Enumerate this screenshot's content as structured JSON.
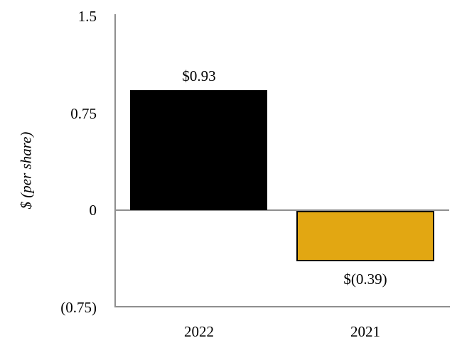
{
  "chart_data": {
    "type": "bar",
    "categories": [
      "2022",
      "2021"
    ],
    "values": [
      0.93,
      -0.39
    ],
    "bar_labels": [
      "$0.93",
      "$(0.39)"
    ],
    "bar_colors": [
      "#000000",
      "#E2A712"
    ],
    "title": "",
    "xlabel": "",
    "ylabel": "$ (per share)",
    "ylim": [
      -0.75,
      1.5
    ],
    "yticks": [
      1.5,
      0.75,
      0,
      -0.75
    ],
    "ytick_labels": [
      "1.5",
      "0.75",
      "0",
      "(0.75)"
    ],
    "grid": false,
    "legend": false
  },
  "colors": {
    "axis_line": "#8f8f8f",
    "bar_border": "#000000",
    "bar_2022": "#000000",
    "bar_2021": "#E2A712",
    "text": "#000000",
    "background": "#ffffff"
  }
}
